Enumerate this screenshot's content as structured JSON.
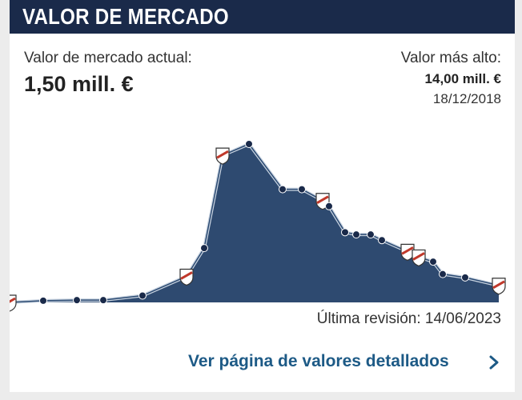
{
  "header": {
    "title": "VALOR DE MERCADO"
  },
  "current": {
    "label": "Valor de mercado actual:",
    "value": "1,50 mill. €"
  },
  "highest": {
    "label": "Valor más alto:",
    "value": "14,00 mill. €",
    "date": "18/12/2018"
  },
  "revision": "Última revisión: 14/06/2023",
  "link": {
    "label": "Ver página de valores detallados",
    "icon": "chevron-right-icon"
  },
  "colors": {
    "header_bg": "#1a2a4a",
    "area_fill": "#2e4a70",
    "line": "#c8d3e0",
    "marker": "#1a2a4a",
    "link": "#1d5a86"
  },
  "chart_data": {
    "type": "area",
    "title": "",
    "xlabel": "",
    "ylabel": "",
    "grid": false,
    "series": [
      {
        "values": [
          0.0,
          0.15,
          0.2,
          0.2,
          0.6,
          2.3,
          4.8,
          13.0,
          14.0,
          10.0,
          10.0,
          9.0,
          8.5,
          6.2,
          6.0,
          6.0,
          5.5,
          4.5,
          4.0,
          3.6,
          2.5,
          2.2,
          1.5
        ],
        "markers": [
          "club",
          "none",
          "none",
          "none",
          "none",
          "club",
          "none",
          "club",
          "none",
          "none",
          "none",
          "club",
          "none",
          "none",
          "none",
          "none",
          "none",
          "club",
          "club",
          "none",
          "none",
          "none",
          "club"
        ]
      }
    ],
    "ylim": [
      0,
      14
    ]
  }
}
